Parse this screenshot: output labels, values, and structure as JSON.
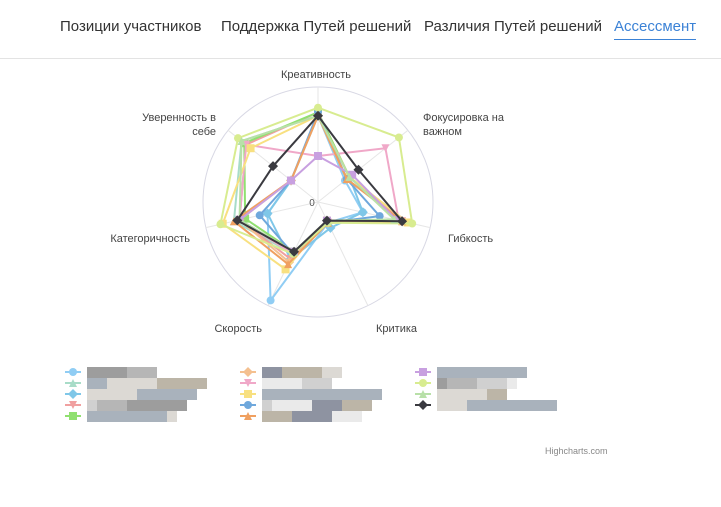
{
  "tabs": [
    "Позиции участников",
    "Поддержка Путей решений",
    "Различия Путей решений",
    "Ассессмент"
  ],
  "active_tab": 3,
  "chart_data": {
    "type": "radar",
    "categories": [
      "Креативность",
      "Фокусировка на важном",
      "Гибкость",
      "Критика",
      "Скорость",
      "Категоричность",
      "Уверенность в себе"
    ],
    "ylim": [
      0,
      10
    ],
    "yticks": [
      0
    ],
    "series": [
      {
        "color": "#90cdf4",
        "marker": "circle",
        "values": [
          7.5,
          3,
          4,
          2,
          9.5,
          4.5,
          3
        ]
      },
      {
        "color": "#a8dcc8",
        "marker": "triangle",
        "values": [
          7.5,
          3.5,
          7,
          2,
          5,
          7.5,
          8.5
        ]
      },
      {
        "color": "#7fc7e8",
        "marker": "diamond",
        "values": [
          7.5,
          3.5,
          4,
          2.5,
          5.5,
          4.5,
          3
        ]
      },
      {
        "color": "#f0a0a0",
        "marker": "triangle-down",
        "values": [
          7.8,
          3.5,
          7.5,
          2,
          5.5,
          7,
          8
        ]
      },
      {
        "color": "#90e070",
        "marker": "square",
        "values": [
          7.8,
          3.5,
          7,
          1.8,
          4.8,
          6.5,
          8.2
        ]
      },
      {
        "color": "#f4c090",
        "marker": "diamond",
        "values": [
          7.5,
          3.2,
          7.5,
          2,
          5.8,
          7,
          3
        ]
      },
      {
        "color": "#f0a8c8",
        "marker": "triangle-down",
        "values": [
          4,
          7.5,
          7.2,
          2,
          5,
          7,
          8
        ]
      },
      {
        "color": "#f8e080",
        "marker": "square",
        "values": [
          7.5,
          3.5,
          8,
          1.8,
          6.5,
          8.5,
          7.5
        ]
      },
      {
        "color": "#6fa8dc",
        "marker": "circle",
        "values": [
          7.8,
          3.2,
          5.5,
          2,
          5,
          5.2,
          3
        ]
      },
      {
        "color": "#f0a060",
        "marker": "triangle",
        "values": [
          7.5,
          3.2,
          7.5,
          2,
          6,
          7.5,
          3
        ]
      },
      {
        "color": "#c8a0e0",
        "marker": "square",
        "values": [
          4,
          3.8,
          7,
          1.8,
          4.8,
          7,
          3
        ]
      },
      {
        "color": "#d8ec90",
        "marker": "circle",
        "values": [
          8.2,
          9,
          8.4,
          2,
          5,
          8.7,
          8.9
        ]
      },
      {
        "color": "#b8e0a8",
        "marker": "triangle",
        "values": [
          7.5,
          3.5,
          6.8,
          1.8,
          4.8,
          7,
          8.5
        ]
      },
      {
        "color": "#3a3a40",
        "marker": "diamond",
        "values": [
          7.5,
          4.5,
          7.5,
          1.8,
          4.8,
          7.2,
          5
        ]
      }
    ]
  },
  "credit": "Highcharts.com"
}
